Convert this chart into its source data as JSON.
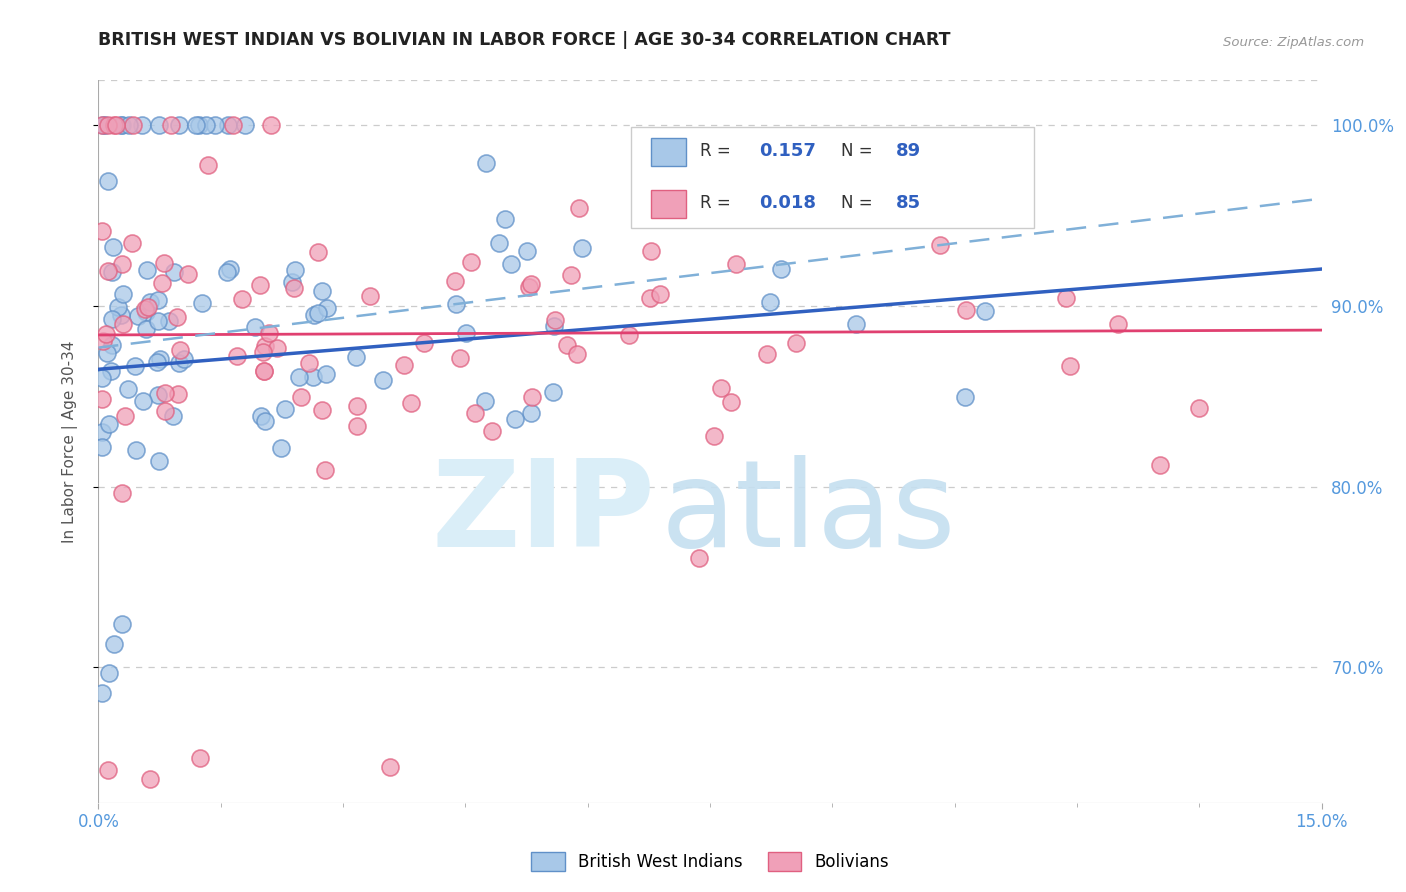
{
  "title": "BRITISH WEST INDIAN VS BOLIVIAN IN LABOR FORCE | AGE 30-34 CORRELATION CHART",
  "source": "Source: ZipAtlas.com",
  "ylabel": "In Labor Force | Age 30-34",
  "xmin": 0.0,
  "xmax": 0.15,
  "ymin": 0.625,
  "ymax": 1.025,
  "color_blue": "#A8C8E8",
  "color_pink": "#F0A0B8",
  "color_blue_edge": "#6090C8",
  "color_pink_edge": "#E06080",
  "trend_blue_solid": "#3060C0",
  "trend_pink_solid": "#E04070",
  "trend_blue_dash": "#80B0D8",
  "right_axis_color": "#5599DD",
  "legend_label_1": "British West Indians",
  "legend_label_2": "Bolivians",
  "bwi_seed": 42,
  "bol_seed": 99
}
